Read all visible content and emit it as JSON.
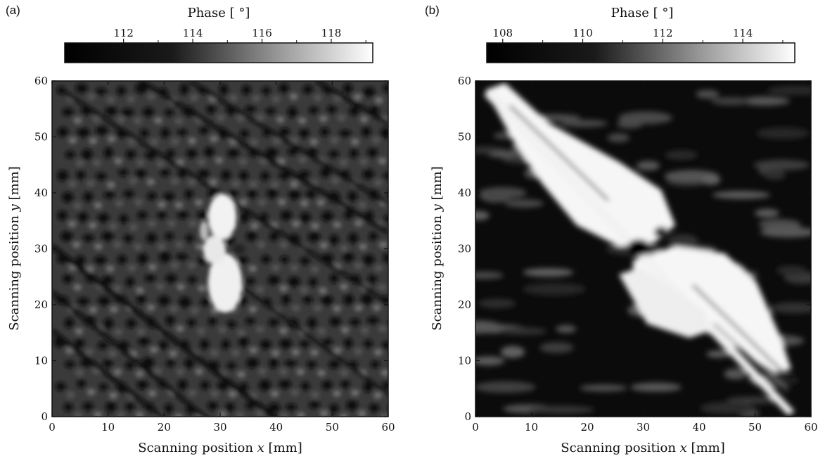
{
  "chart_data": [
    {
      "type": "heatmap",
      "panel": "(a)",
      "colorbar": {
        "title": "Phase [ °]",
        "ticks": [
          "112",
          "114",
          "116",
          "118"
        ],
        "range": [
          110.3,
          119.2
        ],
        "colormap": "grayscale"
      },
      "xlabel_prefix": "Scanning position ",
      "xlabel_var": "x",
      "xlabel_suffix": " [mm]",
      "ylabel_prefix": "Scanning position ",
      "ylabel_var": "y",
      "ylabel_suffix": " [mm]",
      "xlim": [
        0,
        60
      ],
      "ylim": [
        0,
        60
      ],
      "xticks": [
        "0",
        "10",
        "20",
        "30",
        "40",
        "50",
        "60"
      ],
      "yticks": [
        "0",
        "10",
        "20",
        "30",
        "40",
        "50",
        "60"
      ]
    },
    {
      "type": "heatmap",
      "panel": "(b)",
      "colorbar": {
        "title": "Phase [ °]",
        "ticks": [
          "108",
          "110",
          "112",
          "114"
        ],
        "range": [
          107.6,
          115.3
        ],
        "colormap": "grayscale"
      },
      "xlabel_prefix": "Scanning position ",
      "xlabel_var": "x",
      "xlabel_suffix": " [mm]",
      "ylabel_prefix": "Scanning position ",
      "ylabel_var": "y",
      "ylabel_suffix": " [mm]",
      "xlim": [
        0,
        60
      ],
      "ylim": [
        0,
        60
      ],
      "xticks": [
        "0",
        "10",
        "20",
        "30",
        "40",
        "50",
        "60"
      ],
      "yticks": [
        "0",
        "10",
        "20",
        "30",
        "40",
        "50",
        "60"
      ]
    }
  ]
}
